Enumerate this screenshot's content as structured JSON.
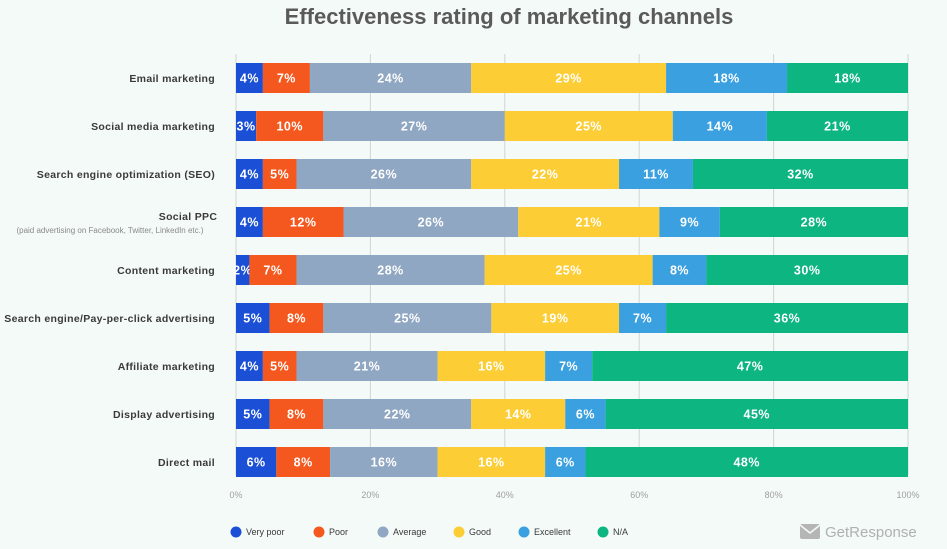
{
  "chart_data": {
    "type": "bar",
    "orientation": "horizontal",
    "stacked": true,
    "title": "Effectiveness rating of marketing channels",
    "categories": [
      {
        "label": "Email marketing",
        "sublabel": ""
      },
      {
        "label": "Social media marketing",
        "sublabel": ""
      },
      {
        "label": "Search engine optimization (SEO)",
        "sublabel": ""
      },
      {
        "label": "Social PPC",
        "sublabel": "(paid advertising on Facebook, Twitter, LinkedIn etc.)"
      },
      {
        "label": "Content marketing",
        "sublabel": ""
      },
      {
        "label": "Search engine/Pay-per-click advertising",
        "sublabel": ""
      },
      {
        "label": "Affiliate marketing",
        "sublabel": ""
      },
      {
        "label": "Display advertising",
        "sublabel": ""
      },
      {
        "label": "Direct mail",
        "sublabel": ""
      }
    ],
    "series": [
      {
        "name": "Very poor",
        "color": "#1a4fd6",
        "values": [
          4,
          3,
          4,
          4,
          2,
          5,
          4,
          5,
          6
        ]
      },
      {
        "name": "Poor",
        "color": "#f4581e",
        "values": [
          7,
          10,
          5,
          12,
          7,
          8,
          5,
          8,
          8
        ]
      },
      {
        "name": "Average",
        "color": "#8fa7c2",
        "values": [
          24,
          27,
          26,
          26,
          28,
          25,
          21,
          22,
          16
        ]
      },
      {
        "name": "Good",
        "color": "#fccd35",
        "values": [
          29,
          25,
          22,
          21,
          25,
          19,
          16,
          14,
          16
        ]
      },
      {
        "name": "Excellent",
        "color": "#3aa0e0",
        "values": [
          18,
          14,
          11,
          9,
          8,
          7,
          7,
          6,
          6
        ]
      },
      {
        "name": "N/A",
        "color": "#0db580",
        "values": [
          18,
          21,
          32,
          28,
          30,
          36,
          47,
          45,
          48
        ]
      }
    ],
    "value_suffix": "%",
    "xlim": [
      0,
      100
    ],
    "xticks": [
      "0%",
      "20%",
      "40%",
      "60%",
      "80%",
      "100%"
    ],
    "xtick_values": [
      0,
      20,
      40,
      60,
      80,
      100
    ],
    "grid": true,
    "legend_position": "bottom"
  },
  "branding": {
    "text": "GetResponse",
    "icon": "envelope-icon",
    "color": "#b0b0b0"
  },
  "colors": {
    "background": "#f3faf7",
    "title": "#5a5a5a",
    "grid": "#cfd6d3"
  }
}
